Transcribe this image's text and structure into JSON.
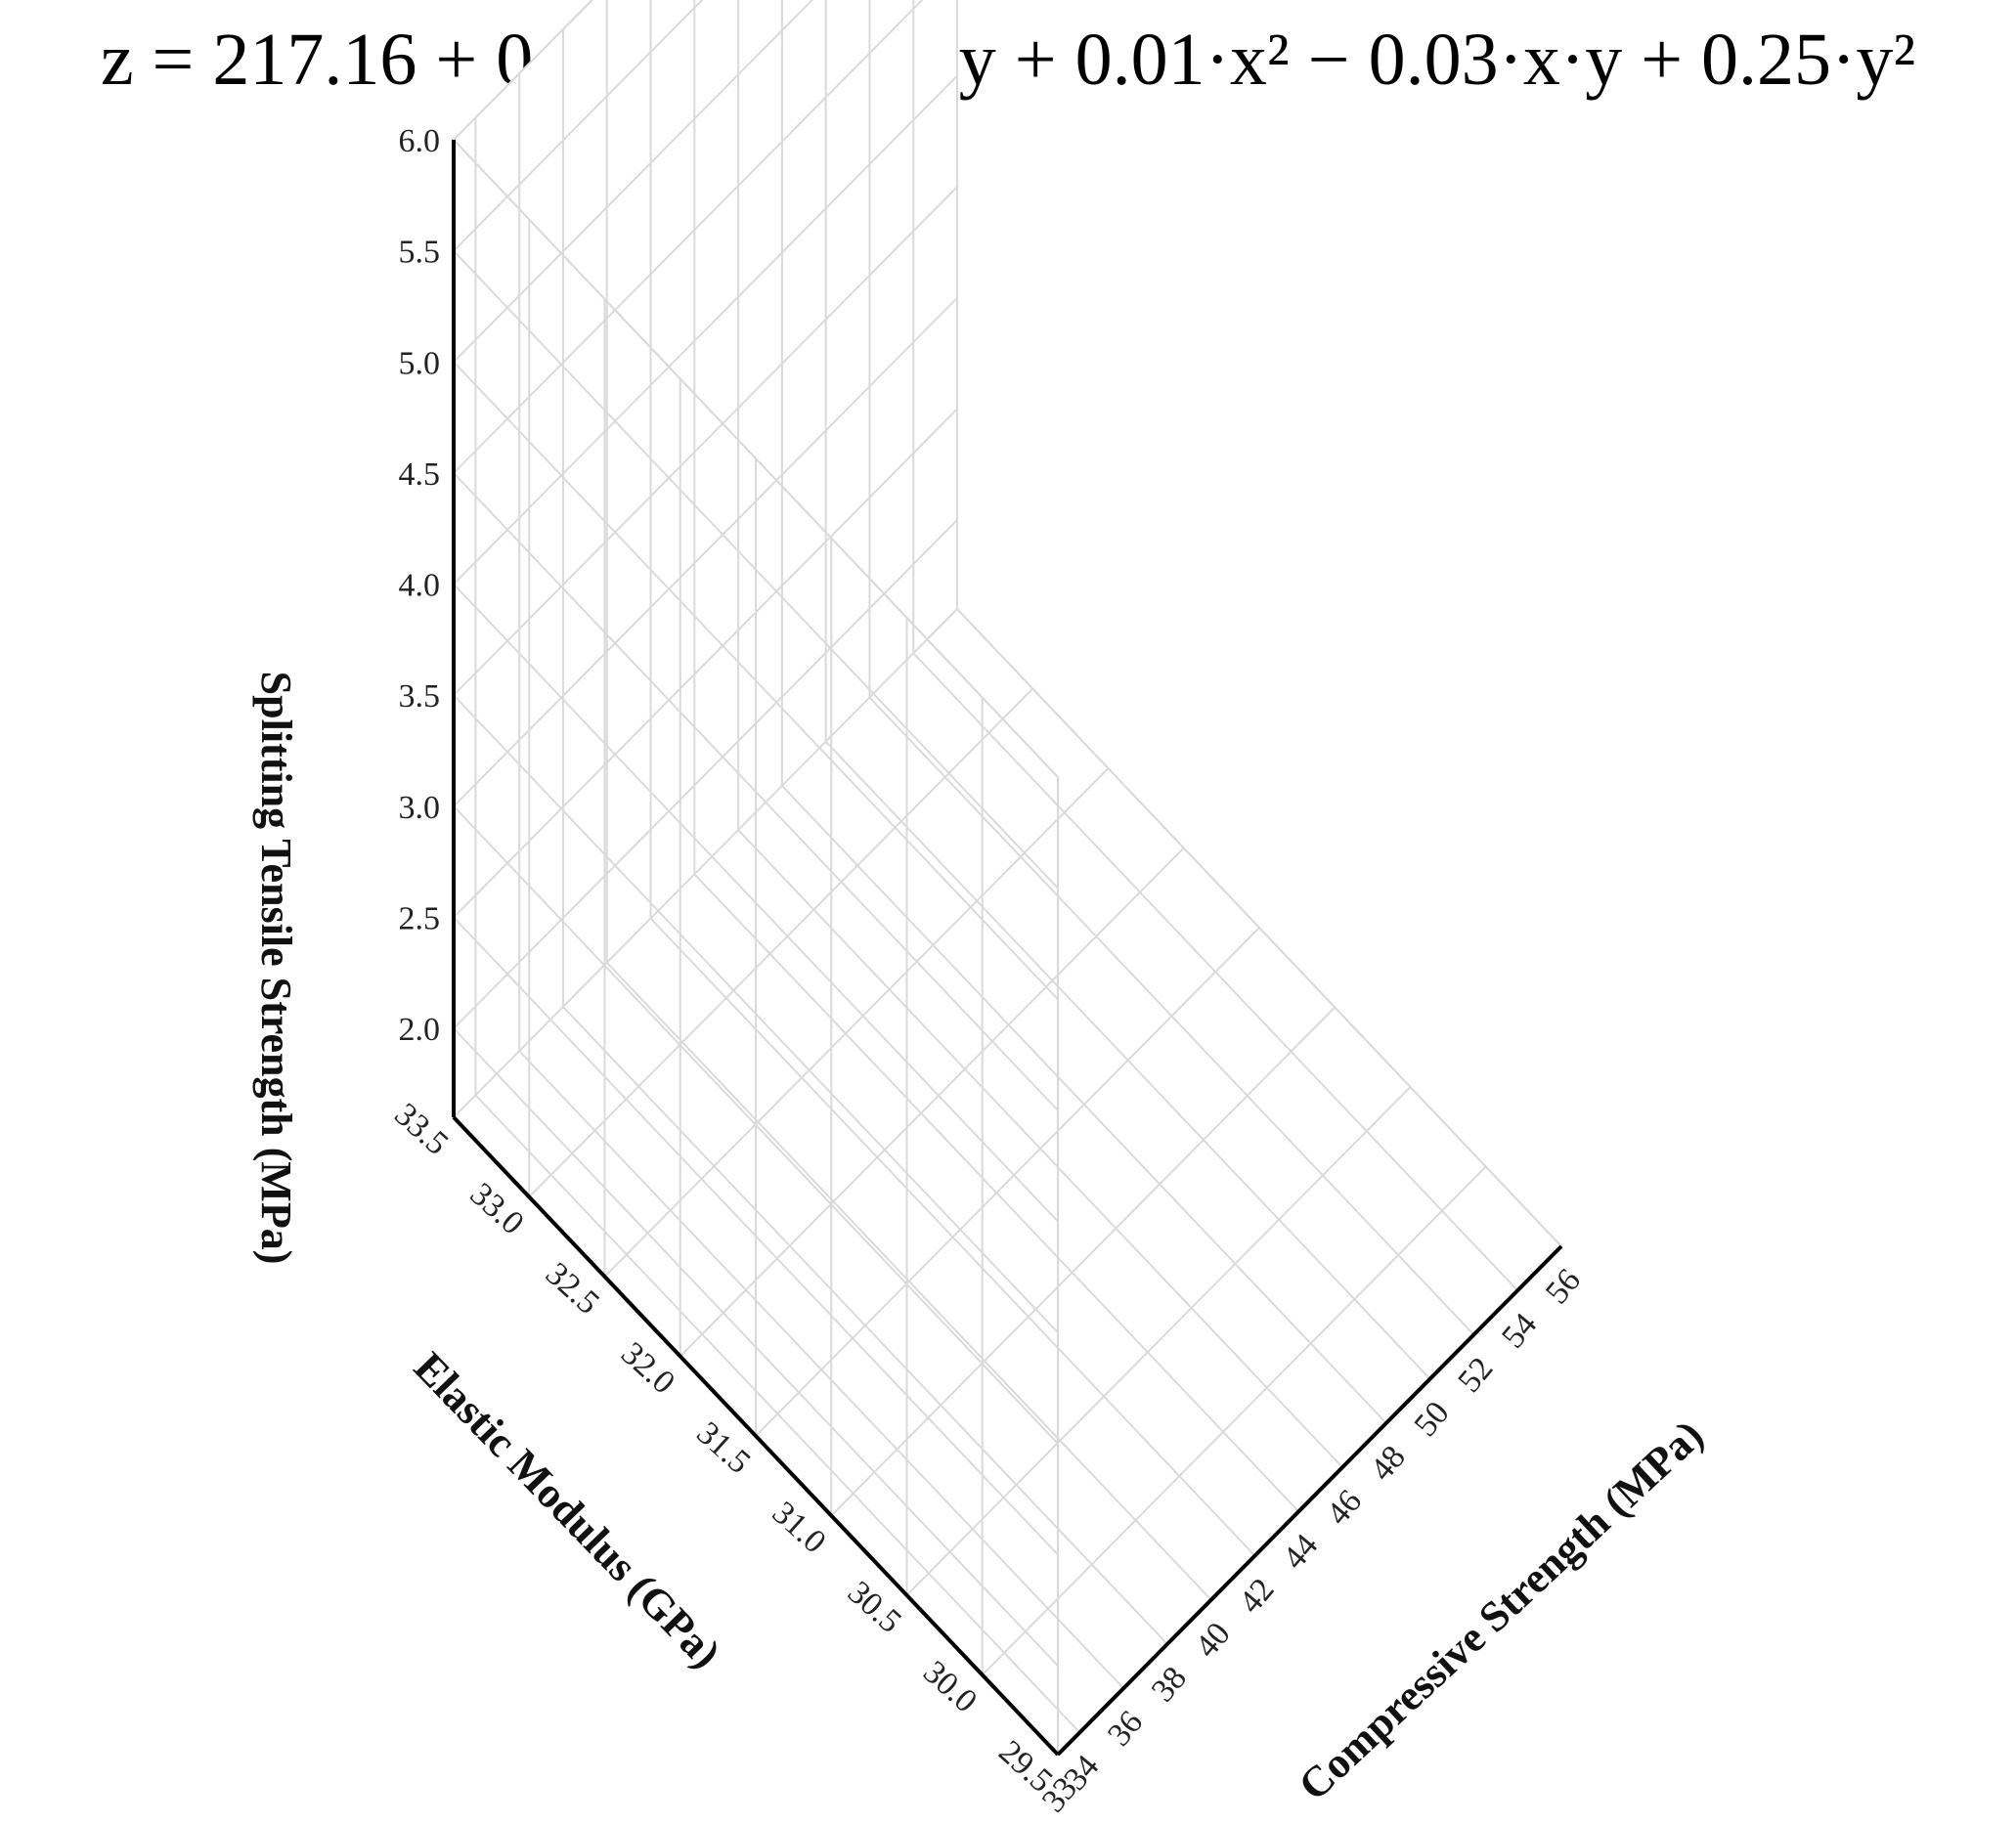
{
  "chart_data": {
    "type": "surface",
    "equation": "z = 217.16 + 0.57·x − 14.38·y + 0.01·x² − 0.03·x·y + 0.25·y²",
    "xlabel": "Compressive Strength (MPa)",
    "ylabel": "Elastic Modulus (GPa)",
    "zlabel": "Splitting Tensile Strength (MPa)",
    "x_range": [
      33,
      56
    ],
    "x_ticks": [
      "33",
      "34",
      "36",
      "38",
      "40",
      "42",
      "44",
      "46",
      "48",
      "50",
      "52",
      "54",
      "56"
    ],
    "y_range": [
      29.5,
      33.5
    ],
    "y_ticks": [
      "29.5",
      "30.0",
      "30.5",
      "31.0",
      "31.5",
      "32.0",
      "32.5",
      "33.0",
      "33.5"
    ],
    "z_range": [
      1.6,
      6.0
    ],
    "z_ticks": [
      "2.0",
      "2.5",
      "3.0",
      "3.5",
      "4.0",
      "4.5",
      "5.0",
      "5.5",
      "6.0"
    ],
    "colormap": [
      "#0b5e4a",
      "#1f9a35",
      "#27d81f",
      "#00ff00",
      "#b4ff00",
      "#ffff00",
      "#ffb000",
      "#ff2000"
    ],
    "grid": true
  }
}
